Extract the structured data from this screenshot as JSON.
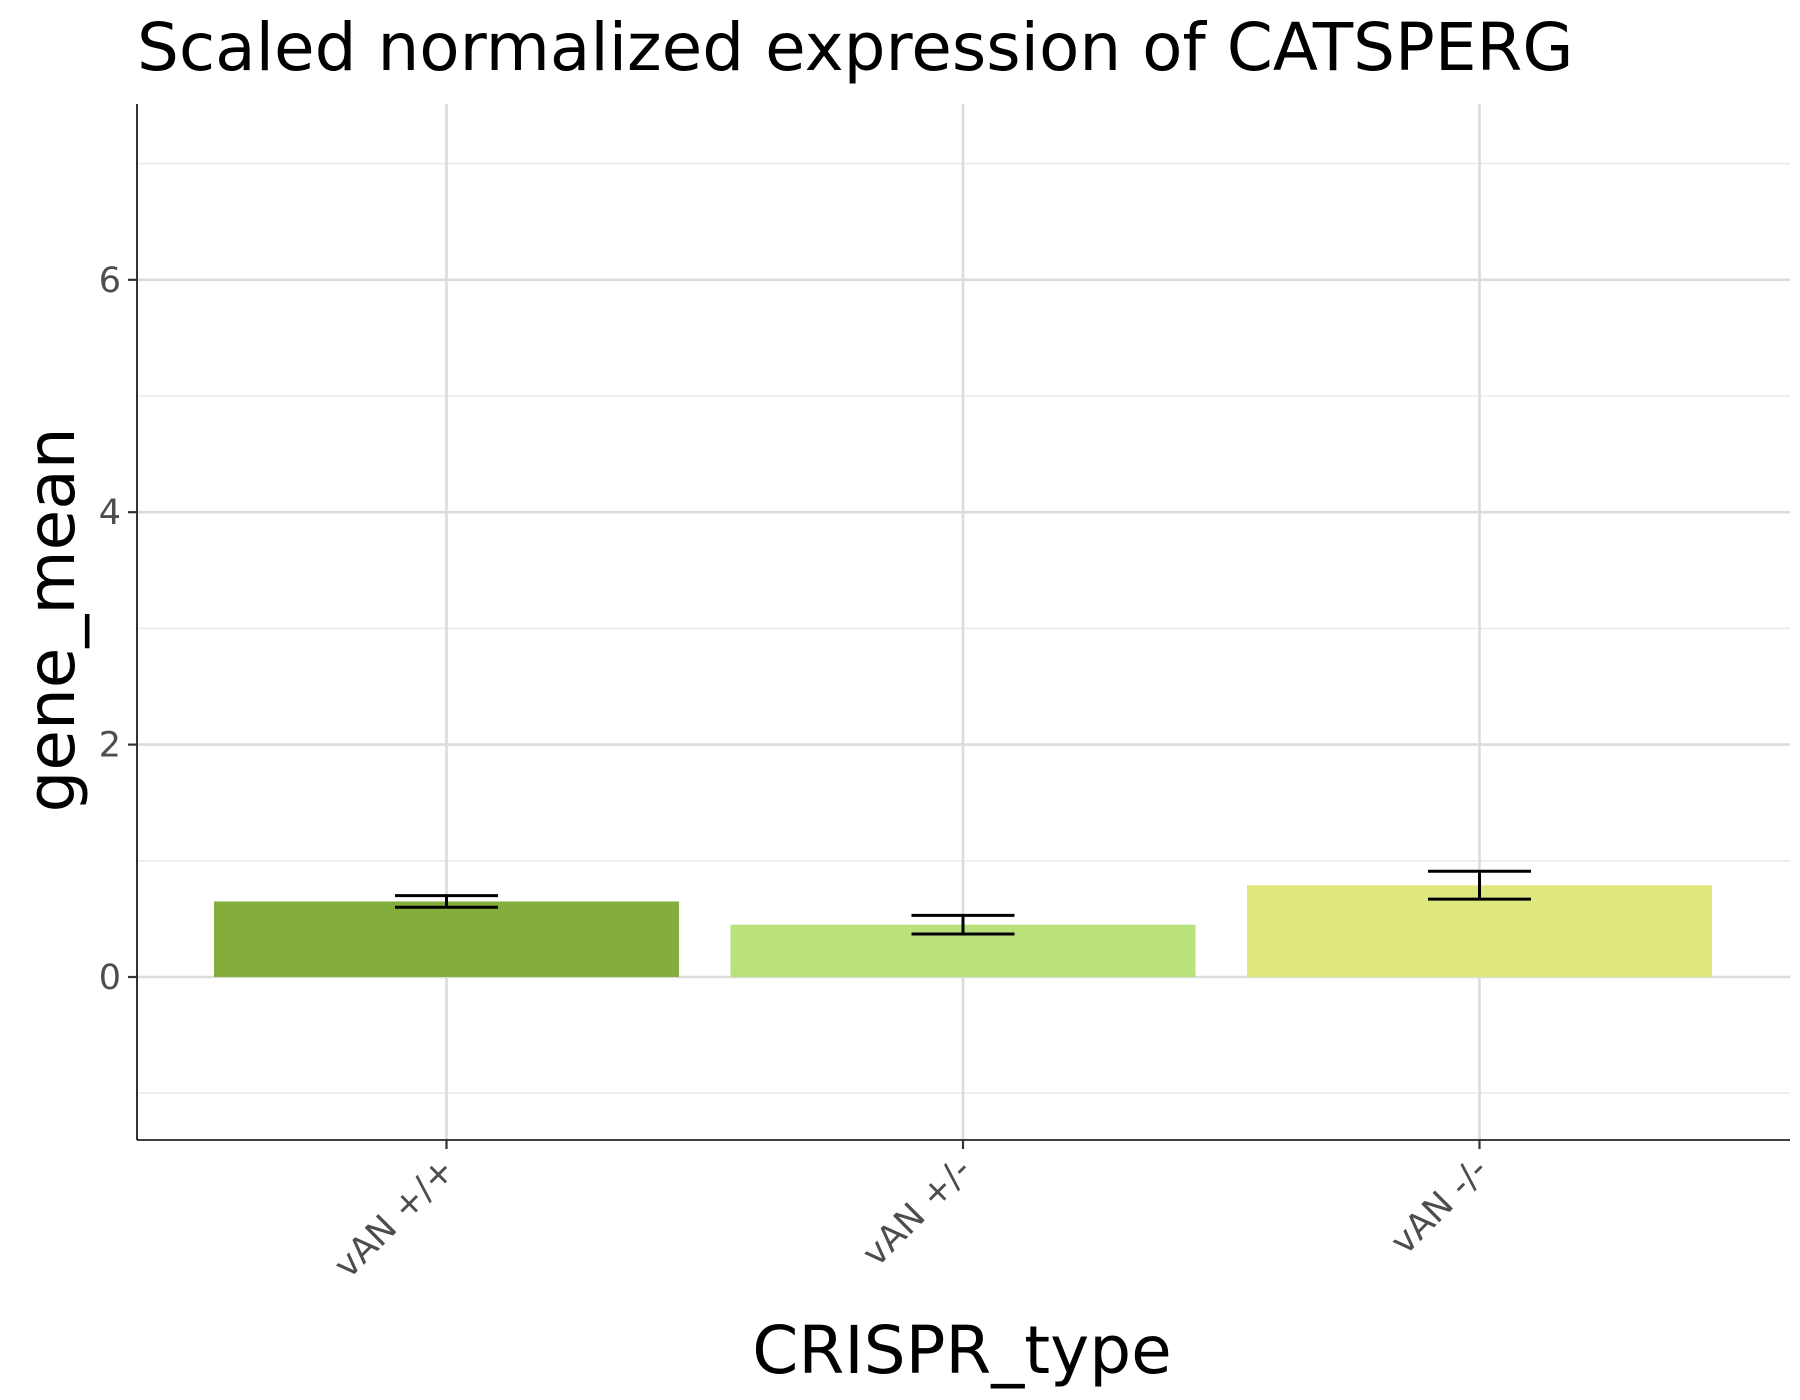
{
  "chart_data": {
    "type": "bar",
    "title": "Scaled normalized expression of CATSPERG",
    "xlabel": "CRISPR_type",
    "ylabel": "gene_mean",
    "categories": [
      "vAN +/+",
      "vAN +/-",
      "vAN -/-"
    ],
    "values": [
      0.65,
      0.45,
      0.79
    ],
    "error_low": [
      0.6,
      0.37,
      0.67
    ],
    "error_high": [
      0.7,
      0.53,
      0.91
    ],
    "colors": [
      "#83ae3d",
      "#bae27b",
      "#dfe87f"
    ],
    "ylim": [
      -1.4,
      7.5
    ],
    "yticks": [
      0,
      2,
      4,
      6
    ],
    "yminor": [
      -1,
      1,
      3,
      5,
      7
    ],
    "grid": true,
    "legend": "none"
  }
}
